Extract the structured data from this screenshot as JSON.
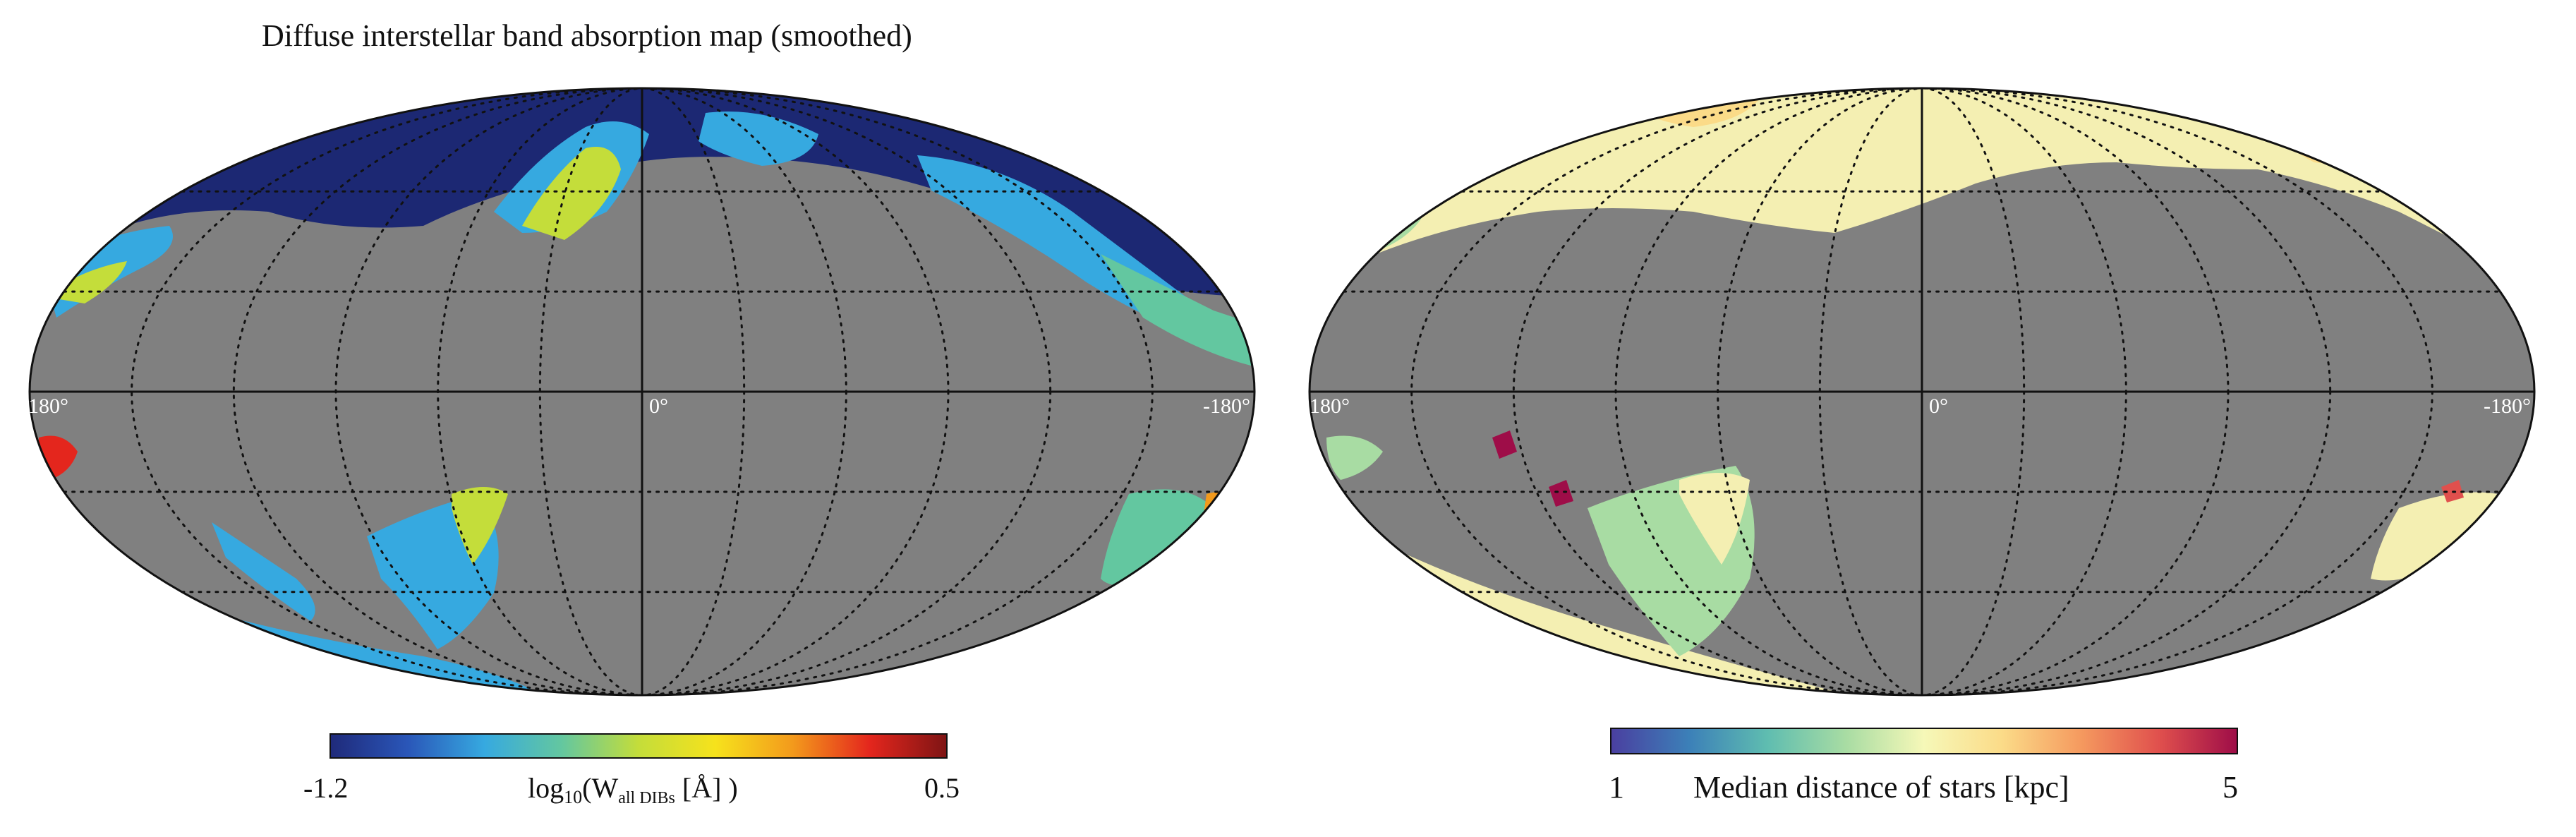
{
  "left_map": {
    "title": "Diffuse interstellar band absorption map (smoothed)",
    "lon_label_left": "180°",
    "lon_label_center": "0°",
    "lon_label_right": "-180°",
    "colorbar": {
      "min_label": "-1.2",
      "max_label": "0.5",
      "label_main": "log",
      "label_sub": "10",
      "label_rest_1": "(W",
      "label_sub2": "all DIBs",
      "label_rest_2": " [Å] )",
      "colormap": "jet",
      "stops": [
        "#1f2a7a",
        "#2a56b8",
        "#36a9e0",
        "#63c7a0",
        "#c4dd3a",
        "#f6e21c",
        "#f39a1c",
        "#e4261d",
        "#7e1414"
      ]
    }
  },
  "right_map": {
    "lon_label_left": "180°",
    "lon_label_center": "0°",
    "lon_label_right": "-180°",
    "colorbar": {
      "min_label": "1",
      "max_label": "5",
      "label": "Median distance of stars [kpc]",
      "colormap": "spectral",
      "stops": [
        "#4a3fa0",
        "#3c80b8",
        "#5fbdb0",
        "#a8dca3",
        "#f6f8b8",
        "#fbdb88",
        "#f59a5f",
        "#e0504d",
        "#9e0d48"
      ]
    }
  },
  "colors": {
    "gray_no_data": "#808080",
    "grid": "#111111",
    "navy": "#1c2873"
  }
}
